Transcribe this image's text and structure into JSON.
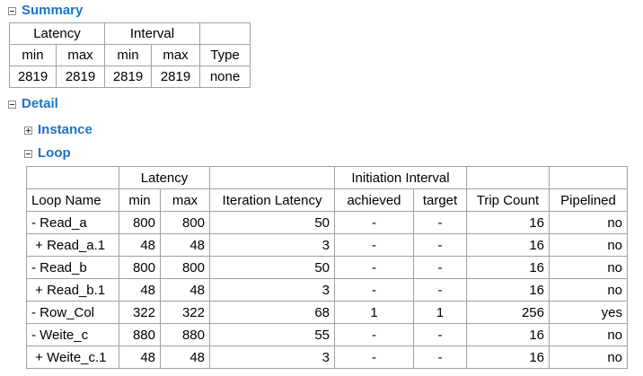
{
  "summary": {
    "title": "Summary",
    "group_headers": [
      "Latency",
      "Interval"
    ],
    "column_headers": [
      "min",
      "max",
      "min",
      "max",
      "Type"
    ],
    "values": [
      "2819",
      "2819",
      "2819",
      "2819",
      "none"
    ]
  },
  "detail": {
    "title": "Detail",
    "instance_title": "Instance",
    "loop_title": "Loop"
  },
  "loop_table": {
    "group_headers": {
      "latency": "Latency",
      "ii": "Initiation Interval"
    },
    "columns": [
      "Loop Name",
      "min",
      "max",
      "Iteration Latency",
      "achieved",
      "target",
      "Trip Count",
      "Pipelined"
    ],
    "rows": [
      [
        "- Read_a",
        "800",
        "800",
        "50",
        "-",
        "-",
        "16",
        "no"
      ],
      [
        " + Read_a.1",
        "48",
        "48",
        "3",
        "-",
        "-",
        "16",
        "no"
      ],
      [
        "- Read_b",
        "800",
        "800",
        "50",
        "-",
        "-",
        "16",
        "no"
      ],
      [
        " + Read_b.1",
        "48",
        "48",
        "3",
        "-",
        "-",
        "16",
        "no"
      ],
      [
        "- Row_Col",
        "322",
        "322",
        "68",
        "1",
        "1",
        "256",
        "yes"
      ],
      [
        "- Weite_c",
        "880",
        "880",
        "55",
        "-",
        "-",
        "16",
        "no"
      ],
      [
        " + Weite_c.1",
        "48",
        "48",
        "3",
        "-",
        "-",
        "16",
        "no"
      ]
    ]
  }
}
